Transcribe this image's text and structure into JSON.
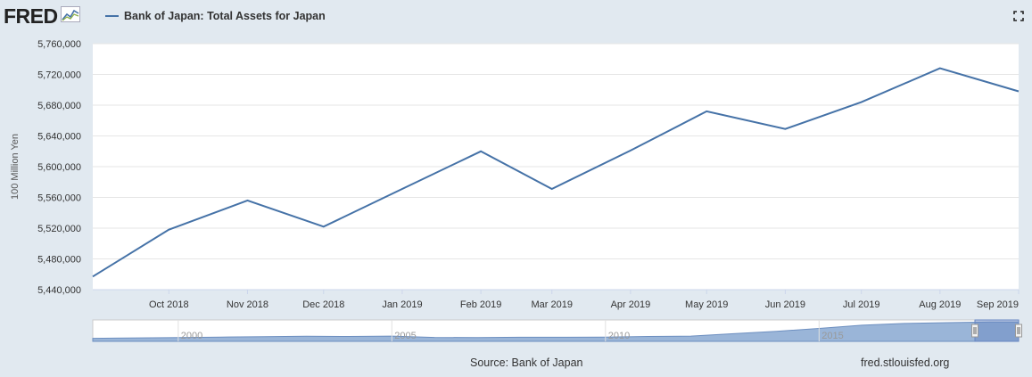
{
  "header": {
    "logo_text": "FRED",
    "series_title": "Bank of Japan: Total Assets for Japan"
  },
  "colors": {
    "line": "#4572a7",
    "background": "#e1e9f0",
    "plot": "#ffffff"
  },
  "icons": {
    "logo_graph": "fred-graph-icon",
    "fullscreen": "fullscreen-icon"
  },
  "footer": {
    "source": "Source: Bank of Japan",
    "credit": "fred.stlouisfed.org"
  },
  "chart_data": {
    "type": "line",
    "ylabel": "100 Million Yen",
    "ylim": [
      5440000,
      5760000
    ],
    "yticks": [
      5440000,
      5480000,
      5520000,
      5560000,
      5600000,
      5640000,
      5680000,
      5720000,
      5760000
    ],
    "ytick_labels": [
      "5,440,000",
      "5,480,000",
      "5,520,000",
      "5,560,000",
      "5,600,000",
      "5,640,000",
      "5,680,000",
      "5,720,000",
      "5,760,000"
    ],
    "xlim": [
      "2018-09-01",
      "2019-09-01"
    ],
    "xticks": [
      "2018-10-01",
      "2018-11-01",
      "2018-12-01",
      "2019-01-01",
      "2019-02-01",
      "2019-03-01",
      "2019-04-01",
      "2019-05-01",
      "2019-06-01",
      "2019-07-01",
      "2019-08-01",
      "2019-09-01"
    ],
    "xtick_labels": [
      "Oct 2018",
      "Nov 2018",
      "Dec 2018",
      "Jan 2019",
      "Feb 2019",
      "Mar 2019",
      "Apr 2019",
      "May 2019",
      "Jun 2019",
      "Jul 2019",
      "Aug 2019",
      "Sep 2019"
    ],
    "grid": true,
    "series": [
      {
        "name": "Bank of Japan: Total Assets for Japan",
        "x": [
          "2018-09-01",
          "2018-10-01",
          "2018-11-01",
          "2018-12-01",
          "2019-01-01",
          "2019-02-01",
          "2019-03-01",
          "2019-04-01",
          "2019-05-01",
          "2019-06-01",
          "2019-07-01",
          "2019-08-01",
          "2019-09-01"
        ],
        "y": [
          5457000,
          5518000,
          5556000,
          5522000,
          5571000,
          5620000,
          5571000,
          5621000,
          5672000,
          5649000,
          5684000,
          5728000,
          5698000
        ]
      }
    ],
    "navigator": {
      "xtick_labels": [
        "2000",
        "2005",
        "2010",
        "2015"
      ],
      "x": [
        1998,
        2000,
        2001,
        2002,
        2003,
        2004,
        2005,
        2006,
        2007,
        2008,
        2009,
        2010,
        2011,
        2012,
        2013,
        2014,
        2015,
        2016,
        2017,
        2018,
        2019
      ],
      "y": [
        900000,
        1100000,
        1250000,
        1350000,
        1500000,
        1450000,
        1550000,
        1150000,
        1100000,
        1200000,
        1200000,
        1250000,
        1450000,
        1550000,
        2250000,
        2950000,
        3800000,
        4750000,
        5250000,
        5500000,
        5700000
      ],
      "selection": [
        "2018-09-01",
        "2019-09-01"
      ]
    }
  }
}
